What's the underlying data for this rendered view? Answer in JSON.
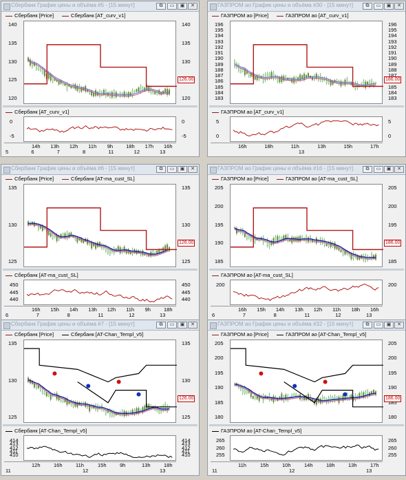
{
  "windows": [
    {
      "title": "Сбербанк График цены и объёма #5 - [15 минут]",
      "legend_top": [
        {
          "name": "Сбербанк [Price]",
          "color": "#8b1a1a"
        },
        {
          "name": "Сбербанк [AT_curv_v1]",
          "color": "#8b1a1a"
        }
      ],
      "legend_bottom": [
        {
          "name": "Сбербанк [AT_curv_v1]",
          "color": "#8b1a1a"
        }
      ],
      "top_ticks": [
        "140",
        "135",
        "130",
        "125",
        "120"
      ],
      "bottom_ticks": [
        "0",
        "-5"
      ],
      "price_badge": "126.00",
      "time_labels": [
        "14h",
        "13h",
        "12h",
        "11h",
        "9h",
        "18h",
        "17h",
        "16h"
      ],
      "date_labels": [
        "5",
        "6",
        "7",
        "8",
        "11",
        "12",
        "13"
      ]
    },
    {
      "title": "ГАЗПРОМ ао График цены и объёма #30 - [15 минут]",
      "legend_top": [
        {
          "name": "ГАЗПРОМ ао [Price]",
          "color": "#8b1a1a"
        },
        {
          "name": "ГАЗПРОМ ао [AT_curv_v1]",
          "color": "#8b1a1a"
        }
      ],
      "legend_bottom": [
        {
          "name": "ГАЗПРОМ ао [AT_curv_v1]",
          "color": "#8b1a1a"
        }
      ],
      "top_ticks": [
        "196",
        "195",
        "194",
        "193",
        "192",
        "191",
        "190",
        "189",
        "188",
        "187",
        "186",
        "185",
        "184",
        "183"
      ],
      "bottom_ticks": [
        "5",
        "0"
      ],
      "price_badge": "186.00",
      "time_labels": [
        "16h",
        "18h",
        "11h",
        "13h",
        "15h",
        "17h"
      ],
      "date_labels": [
        "13"
      ]
    },
    {
      "title": "Сбербанк График цены и объёма #6 - [15 минут]",
      "legend_top": [
        {
          "name": "Сбербанк [Price]",
          "color": "#8b1a1a"
        },
        {
          "name": "Сбербанк [AT-ma_cust_SL]",
          "color": "#8b1a1a"
        }
      ],
      "legend_bottom": [
        {
          "name": "Сбербанк [AT-ma_cust_SL]",
          "color": "#8b1a1a"
        }
      ],
      "top_ticks": [
        "135",
        "130",
        "125"
      ],
      "bottom_ticks": [
        "450",
        "445",
        "440"
      ],
      "price_badge": "126.00",
      "time_labels": [
        "16h",
        "15h",
        "14h",
        "13h",
        "12h",
        "11h",
        "9h",
        "18h"
      ],
      "date_labels": [
        "6",
        "7",
        "8",
        "11",
        "12",
        "13"
      ]
    },
    {
      "title": "ГАЗПРОМ ао График цены и объёма #16 - [15 минут]",
      "legend_top": [
        {
          "name": "ГАЗПРОМ ао [Price]",
          "color": "#8b1a1a"
        },
        {
          "name": "ГАЗПРОМ ао [AT-ma_cust_SL]",
          "color": "#8b1a1a"
        }
      ],
      "legend_bottom": [
        {
          "name": "ГАЗПРОМ ао [AT-ma_cust_SL]",
          "color": "#8b1a1a"
        }
      ],
      "top_ticks": [
        "205",
        "200",
        "195",
        "190",
        "185"
      ],
      "bottom_ticks": [
        "200"
      ],
      "price_badge": "186.00",
      "time_labels": [
        "16h",
        "15h",
        "14h",
        "13h",
        "12h",
        "11h",
        "18h",
        "16h"
      ],
      "date_labels": [
        "6",
        "7",
        "8",
        "11",
        "12",
        "13"
      ]
    },
    {
      "title": "Сбербанк График цены и объёма #7 - [15 минут]",
      "legend_top": [
        {
          "name": "Сбербанк [Price]",
          "color": "#8b1a1a"
        },
        {
          "name": "Сбербанк [AT-Chan_Templ_v5]",
          "color": "#000000"
        }
      ],
      "legend_bottom": [
        {
          "name": "Сбербанк [AT-Chan_Templ_v5]",
          "color": "#000000"
        }
      ],
      "top_ticks": [
        "135",
        "130",
        "125"
      ],
      "bottom_ticks": [
        "414",
        "413",
        "412",
        "411",
        "410"
      ],
      "price_badge": "126.00",
      "time_labels": [
        "12h",
        "16h",
        "11h",
        "15h",
        "9h",
        "13h",
        "18h"
      ],
      "date_labels": [
        "11",
        "12",
        "13"
      ]
    },
    {
      "title": "ГАЗПРОМ ао График цены и объёма #32 - [15 минут]",
      "legend_top": [
        {
          "name": "ГАЗПРОМ ао [Price]",
          "color": "#8b1a1a"
        },
        {
          "name": "ГАЗПРОМ ао [AT-Chan_Templ_v5]",
          "color": "#000000"
        }
      ],
      "legend_bottom": [
        {
          "name": "ГАЗПРОМ ао [AT-Chan_Templ_v5]",
          "color": "#000000"
        }
      ],
      "top_ticks": [
        "205",
        "200",
        "195",
        "190",
        "185",
        "180"
      ],
      "bottom_ticks": [
        "265",
        "260",
        "255"
      ],
      "price_badge": "186.00",
      "time_labels": [
        "11h",
        "15h",
        "10h",
        "14h",
        "18h",
        "13h",
        "17h"
      ],
      "date_labels": [
        "11",
        "12",
        "13"
      ]
    }
  ]
}
